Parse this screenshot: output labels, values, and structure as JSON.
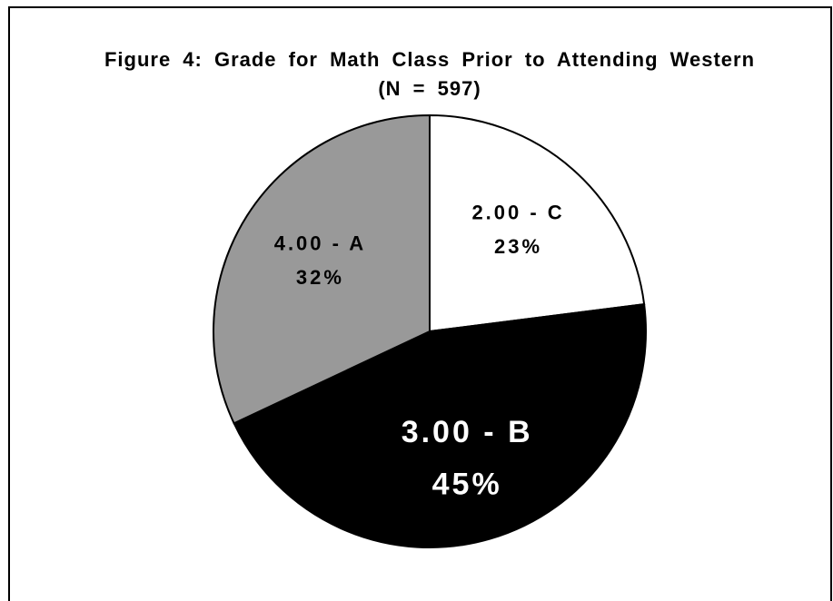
{
  "chart_data": {
    "type": "pie",
    "title": "Figure 4: Grade for Math Class Prior to Attending Western (N = 597)",
    "categories": [
      "2.00 - C",
      "3.00 - B",
      "4.00 - A"
    ],
    "values": [
      23,
      45,
      32
    ],
    "value_labels": [
      "23%",
      "45%",
      "32%"
    ],
    "colors": [
      "#ffffff",
      "#000000",
      "#999999"
    ]
  }
}
